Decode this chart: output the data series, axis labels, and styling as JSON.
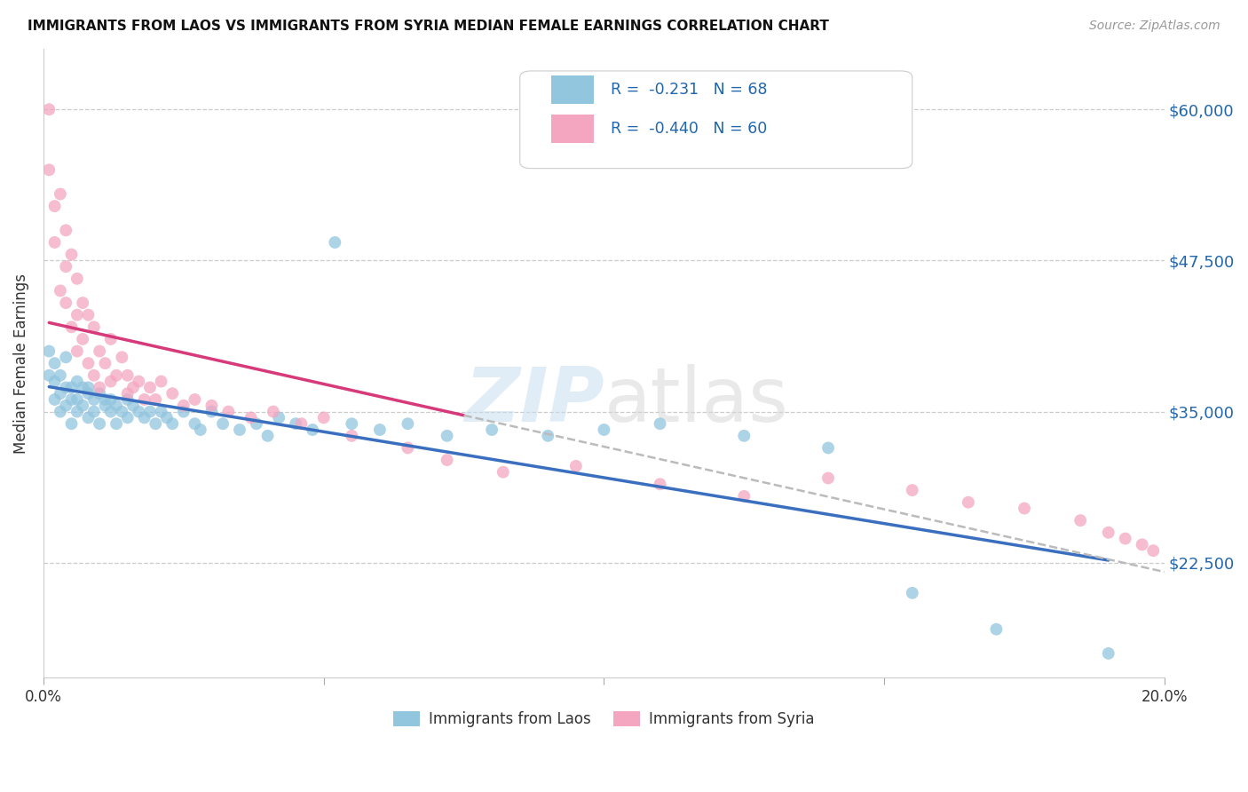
{
  "title": "IMMIGRANTS FROM LAOS VS IMMIGRANTS FROM SYRIA MEDIAN FEMALE EARNINGS CORRELATION CHART",
  "source": "Source: ZipAtlas.com",
  "ylabel": "Median Female Earnings",
  "xlim": [
    0.0,
    0.2
  ],
  "ylim": [
    13000,
    65000
  ],
  "ytick_vals": [
    22500,
    35000,
    47500,
    60000
  ],
  "ytick_labels": [
    "$22,500",
    "$35,000",
    "$47,500",
    "$60,000"
  ],
  "xtick_vals": [
    0.0,
    0.05,
    0.1,
    0.15,
    0.2
  ],
  "xtick_labels": [
    "0.0%",
    "",
    "",
    "",
    "20.0%"
  ],
  "watermark": "ZIPatlas",
  "legend_R_laos": "-0.231",
  "legend_N_laos": "68",
  "legend_R_syria": "-0.440",
  "legend_N_syria": "60",
  "blue_color": "#92c5de",
  "pink_color": "#f4a6c0",
  "trend_blue": "#3a6fbf",
  "trend_pink": "#d63a7a",
  "trend_dashed_color": "#bbbbbb",
  "background_color": "#ffffff",
  "laos_x": [
    0.001,
    0.001,
    0.002,
    0.002,
    0.002,
    0.003,
    0.003,
    0.003,
    0.004,
    0.004,
    0.004,
    0.005,
    0.005,
    0.005,
    0.006,
    0.006,
    0.006,
    0.007,
    0.007,
    0.008,
    0.008,
    0.008,
    0.009,
    0.009,
    0.01,
    0.01,
    0.011,
    0.011,
    0.012,
    0.012,
    0.013,
    0.013,
    0.014,
    0.015,
    0.015,
    0.016,
    0.017,
    0.018,
    0.019,
    0.02,
    0.021,
    0.022,
    0.023,
    0.025,
    0.027,
    0.028,
    0.03,
    0.032,
    0.035,
    0.038,
    0.04,
    0.042,
    0.045,
    0.048,
    0.052,
    0.055,
    0.06,
    0.065,
    0.072,
    0.08,
    0.09,
    0.1,
    0.11,
    0.125,
    0.14,
    0.155,
    0.17,
    0.19
  ],
  "laos_y": [
    40000,
    38000,
    37500,
    36000,
    39000,
    38000,
    36500,
    35000,
    37000,
    35500,
    39500,
    37000,
    36000,
    34000,
    37500,
    36000,
    35000,
    37000,
    35500,
    37000,
    36500,
    34500,
    36000,
    35000,
    36500,
    34000,
    36000,
    35500,
    35000,
    36000,
    35500,
    34000,
    35000,
    36000,
    34500,
    35500,
    35000,
    34500,
    35000,
    34000,
    35000,
    34500,
    34000,
    35000,
    34000,
    33500,
    35000,
    34000,
    33500,
    34000,
    33000,
    34500,
    34000,
    33500,
    49000,
    34000,
    33500,
    34000,
    33000,
    33500,
    33000,
    33500,
    34000,
    33000,
    32000,
    20000,
    17000,
    15000
  ],
  "syria_x": [
    0.001,
    0.001,
    0.002,
    0.002,
    0.003,
    0.003,
    0.004,
    0.004,
    0.004,
    0.005,
    0.005,
    0.006,
    0.006,
    0.006,
    0.007,
    0.007,
    0.008,
    0.008,
    0.009,
    0.009,
    0.01,
    0.01,
    0.011,
    0.012,
    0.012,
    0.013,
    0.014,
    0.015,
    0.015,
    0.016,
    0.017,
    0.018,
    0.019,
    0.02,
    0.021,
    0.023,
    0.025,
    0.027,
    0.03,
    0.033,
    0.037,
    0.041,
    0.046,
    0.05,
    0.055,
    0.065,
    0.072,
    0.082,
    0.095,
    0.11,
    0.125,
    0.14,
    0.155,
    0.165,
    0.175,
    0.185,
    0.19,
    0.193,
    0.196,
    0.198
  ],
  "syria_y": [
    60000,
    55000,
    52000,
    49000,
    53000,
    45000,
    50000,
    47000,
    44000,
    48000,
    42000,
    46000,
    43000,
    40000,
    44000,
    41000,
    43000,
    39000,
    42000,
    38000,
    40000,
    37000,
    39000,
    41000,
    37500,
    38000,
    39500,
    38000,
    36500,
    37000,
    37500,
    36000,
    37000,
    36000,
    37500,
    36500,
    35500,
    36000,
    35500,
    35000,
    34500,
    35000,
    34000,
    34500,
    33000,
    32000,
    31000,
    30000,
    30500,
    29000,
    28000,
    29500,
    28500,
    27500,
    27000,
    26000,
    25000,
    24500,
    24000,
    23500
  ]
}
